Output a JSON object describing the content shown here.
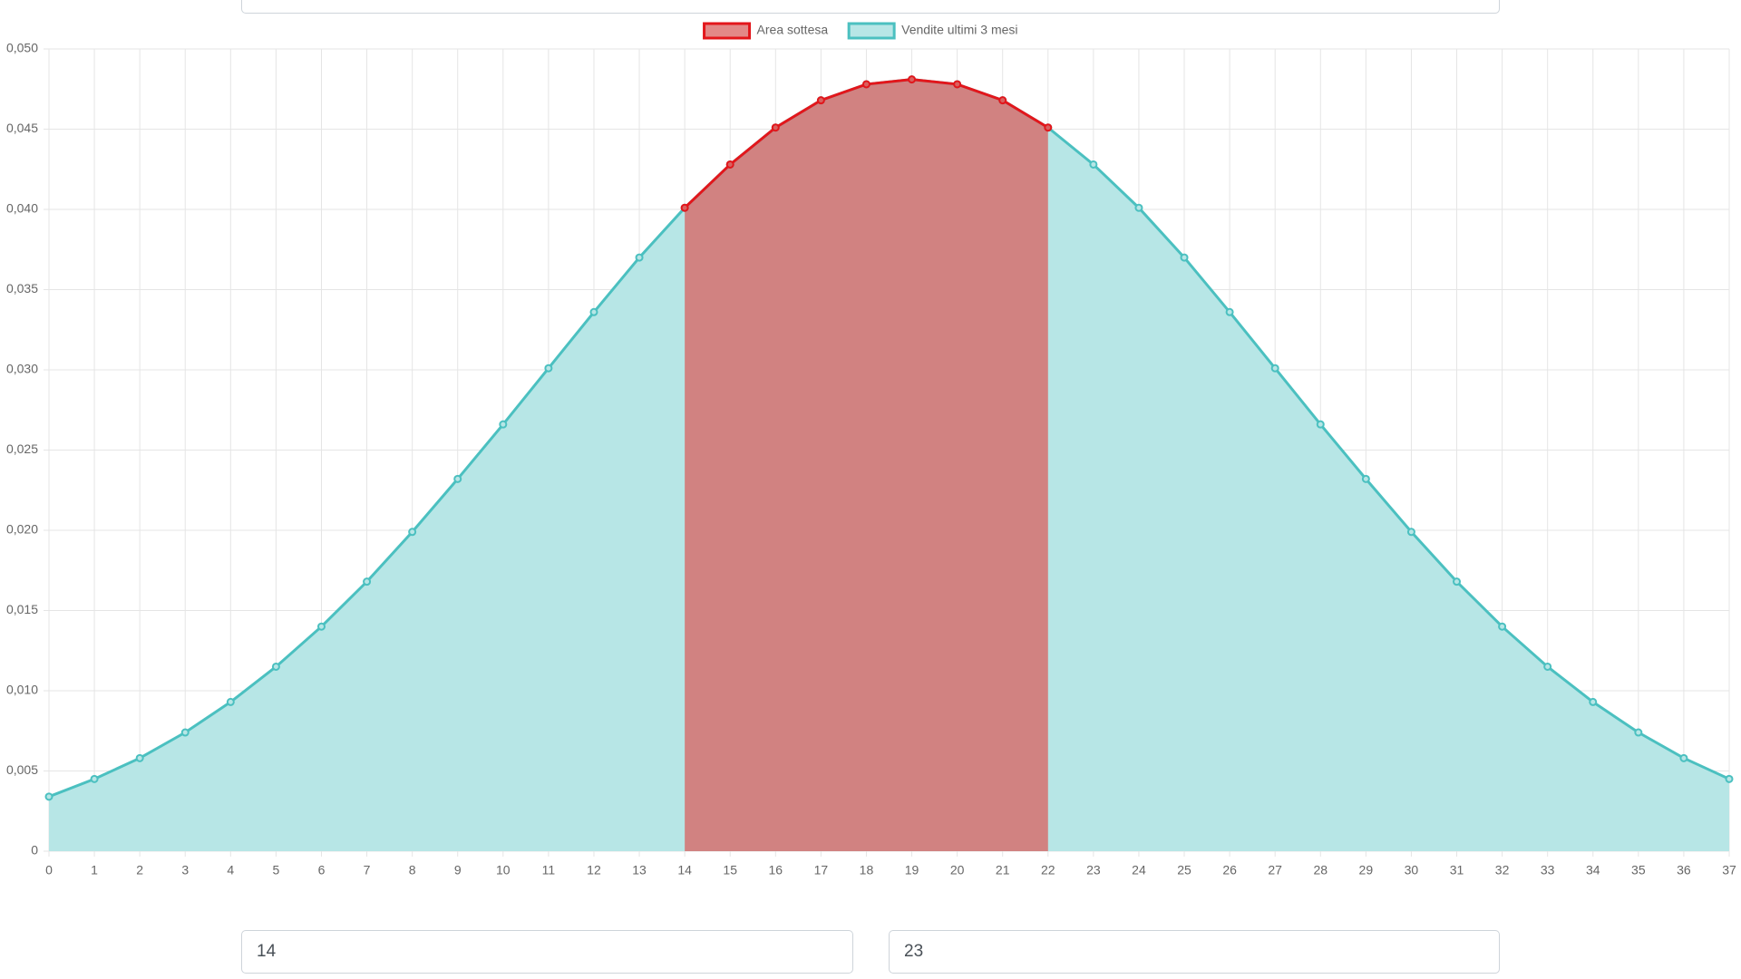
{
  "chart_data": {
    "type": "line",
    "categories": [
      0,
      1,
      2,
      3,
      4,
      5,
      6,
      7,
      8,
      9,
      10,
      11,
      12,
      13,
      14,
      15,
      16,
      17,
      18,
      19,
      20,
      21,
      22,
      23,
      24,
      25,
      26,
      27,
      28,
      29,
      30,
      31,
      32,
      33,
      34,
      35,
      36,
      37
    ],
    "series": [
      {
        "name": "Area sottesa",
        "color": "#e3161b",
        "fill": "#d9605f",
        "values": [
          null,
          null,
          null,
          null,
          null,
          null,
          null,
          null,
          null,
          null,
          null,
          null,
          null,
          null,
          0.0401,
          0.0428,
          0.0451,
          0.0468,
          0.0478,
          0.0481,
          0.0478,
          0.0468,
          0.0451,
          null,
          null,
          null,
          null,
          null,
          null,
          null,
          null,
          null,
          null,
          null,
          null,
          null,
          null,
          null
        ]
      },
      {
        "name": "Vendite ultimi 3 mesi",
        "color": "#4bc0c0",
        "fill": "#b7e6e6",
        "values": [
          0.0034,
          0.0045,
          0.0058,
          0.0074,
          0.0093,
          0.0115,
          0.014,
          0.0168,
          0.0199,
          0.0232,
          0.0266,
          0.0301,
          0.0336,
          0.037,
          0.0401,
          0.0428,
          0.0451,
          0.0468,
          0.0478,
          0.0481,
          0.0478,
          0.0468,
          0.0451,
          0.0428,
          0.0401,
          0.037,
          0.0336,
          0.0301,
          0.0266,
          0.0232,
          0.0199,
          0.0168,
          0.014,
          0.0115,
          0.0093,
          0.0074,
          0.0058,
          0.0045
        ]
      }
    ],
    "ylim": [
      0,
      0.05
    ],
    "yticks": [
      0,
      {
        "value": 0.005,
        "label": "0,005"
      },
      {
        "value": 0.01,
        "label": "0,010"
      },
      {
        "value": 0.015,
        "label": "0,015"
      },
      {
        "value": 0.02,
        "label": "0,020"
      },
      {
        "value": 0.025,
        "label": "0,025"
      },
      {
        "value": 0.03,
        "label": "0,030"
      },
      {
        "value": 0.035,
        "label": "0,035"
      },
      {
        "value": 0.04,
        "label": "0,040"
      },
      {
        "value": 0.045,
        "label": "0,045"
      },
      {
        "value": 0.05,
        "label": "0,050"
      }
    ],
    "grid": true,
    "legend": "top"
  },
  "controls": {
    "from": "14",
    "to": "23"
  }
}
